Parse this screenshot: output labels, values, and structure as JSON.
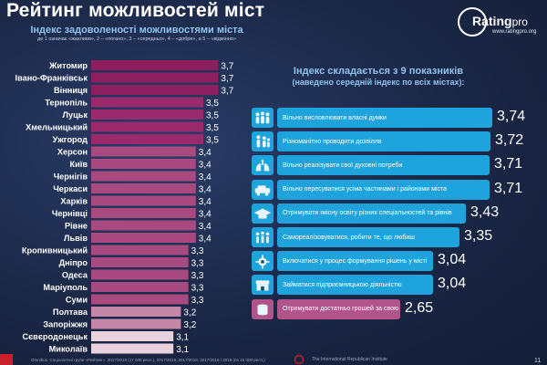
{
  "title": "Рейтинг можливостей міст",
  "logo": {
    "brand": "Rating",
    "brand_suffix": "pro",
    "site": "www.ratingpro.org"
  },
  "chart_data": [
    {
      "type": "bar",
      "orientation": "horizontal",
      "title": "Індекс задоволеності можливостями міста",
      "subtitle": "де 1 означає «жахливо», 2 – «погано», 3 – «середньо», 4 – «добре», а 5 – «відмінно»",
      "categories": [
        "Житомир",
        "Івано-Франківськ",
        "Вінниця",
        "Тернопіль",
        "Луцьк",
        "Хмельницький",
        "Ужгород",
        "Херсон",
        "Київ",
        "Чернігів",
        "Черкаси",
        "Харків",
        "Чернівці",
        "Рівне",
        "Львів",
        "Кропивницький",
        "Дніпро",
        "Одеса",
        "Маріуполь",
        "Суми",
        "Полтава",
        "Запоріжжя",
        "Сєвєродонецьк",
        "Миколаїв"
      ],
      "values": [
        3.7,
        3.7,
        3.7,
        3.5,
        3.5,
        3.5,
        3.5,
        3.4,
        3.4,
        3.4,
        3.4,
        3.4,
        3.4,
        3.4,
        3.4,
        3.3,
        3.3,
        3.3,
        3.3,
        3.3,
        3.2,
        3.2,
        3.1,
        3.1
      ],
      "value_labels": [
        "3,7",
        "3,7",
        "3,7",
        "3,5",
        "3,5",
        "3,5",
        "3,5",
        "3,4",
        "3,4",
        "3,4",
        "3,4",
        "3,4",
        "3,4",
        "3,4",
        "3,4",
        "3,3",
        "3,3",
        "3,3",
        "3,3",
        "3,3",
        "3,2",
        "3,2",
        "3,1",
        "3,1"
      ],
      "colors": {
        "top": "#8e1f5e",
        "high": "#9a2a6b",
        "mid": "#a84a80",
        "low": "#c487a8",
        "lowest": "#e7d2dd"
      }
    },
    {
      "type": "bar",
      "orientation": "horizontal",
      "title": "Індекс складається з 9 показників",
      "subtitle": "(наведено середній індекс по всіх містах):",
      "categories": [
        "Вільно висловлювати власні думки",
        "Різноманітно проводити дозвілля",
        "Вільно реалізувати свої духовні потреби",
        "Вільно пересуватися усіма частинами і районами міста",
        "Отримувати якісну освіту різних спеціальностей та рівнів",
        "Самореалізовуватися, робити те, що любиш",
        "Включатися у процес формування рішень у місті",
        "Займатися підприємницькою діяльністю",
        "Отримувати достатньо грошей за свою роботу"
      ],
      "values": [
        3.74,
        3.72,
        3.71,
        3.71,
        3.43,
        3.35,
        3.04,
        3.04,
        2.65
      ],
      "value_labels": [
        "3,74",
        "3,72",
        "3,71",
        "3,71",
        "3,43",
        "3,35",
        "3,04",
        "3,04",
        "2,65"
      ],
      "icons": [
        "people-speaking-icon",
        "people-leisure-icon",
        "lungs-icon",
        "transport-icon",
        "graduation-cap-icon",
        "people-celebrating-icon",
        "gears-icon",
        "shop-icon",
        "coins-icon"
      ],
      "colors": {
        "primary": "#1fa3dc",
        "last": "#b0548a"
      }
    }
  ],
  "footer": {
    "source": "Omnibus. Соціологічні групи «Рейтинг». 2017/2018 (17 000 респ.), 2017/2018, 2017/2018, 2017/2018 / 2018 (по 15 000 респ.)",
    "institute": "The International Republican Institute",
    "page": "11"
  }
}
